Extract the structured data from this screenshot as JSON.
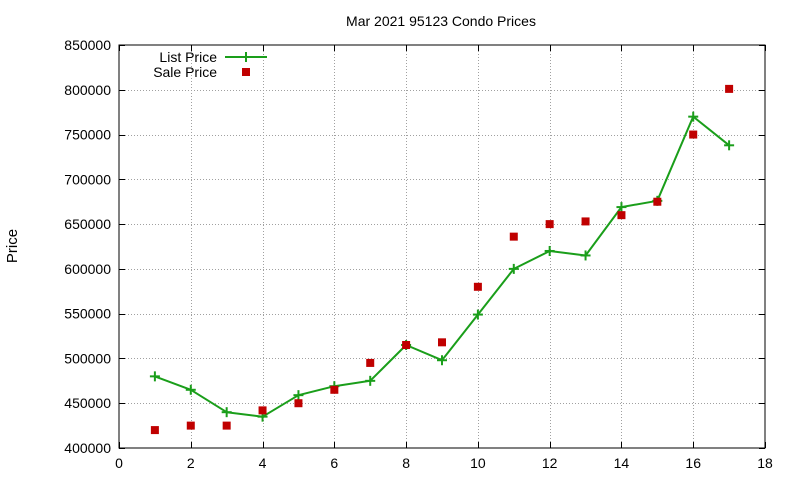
{
  "chart_data": {
    "type": "line",
    "title": "Mar 2021 95123 Condo Prices",
    "xlabel": "",
    "ylabel": "Price",
    "xlim": [
      0,
      18
    ],
    "ylim": [
      400000,
      850000
    ],
    "xticks": [
      0,
      2,
      4,
      6,
      8,
      10,
      12,
      14,
      16,
      18
    ],
    "yticks": [
      400000,
      450000,
      500000,
      550000,
      600000,
      650000,
      700000,
      750000,
      800000,
      850000
    ],
    "grid": true,
    "legend_position": "top-left",
    "series": [
      {
        "name": "List Price",
        "style": "linespoints",
        "marker": "plus",
        "color": "#1a9e1a",
        "x": [
          1,
          2,
          3,
          4,
          5,
          6,
          7,
          8,
          9,
          10,
          11,
          12,
          13,
          14,
          15,
          16,
          17
        ],
        "y": [
          480000,
          465000,
          440000,
          435000,
          459000,
          469000,
          475000,
          515000,
          498000,
          549000,
          600000,
          620000,
          615000,
          669000,
          676000,
          770000,
          738000
        ]
      },
      {
        "name": "Sale Price",
        "style": "points",
        "marker": "square",
        "color": "#c00000",
        "x": [
          1,
          2,
          3,
          4,
          5,
          6,
          7,
          8,
          9,
          10,
          11,
          12,
          13,
          14,
          15,
          16,
          17
        ],
        "y": [
          420000,
          425000,
          425000,
          442000,
          450000,
          465000,
          495000,
          515000,
          518000,
          580000,
          636000,
          650000,
          653000,
          660000,
          675000,
          750000,
          801000
        ]
      }
    ]
  }
}
